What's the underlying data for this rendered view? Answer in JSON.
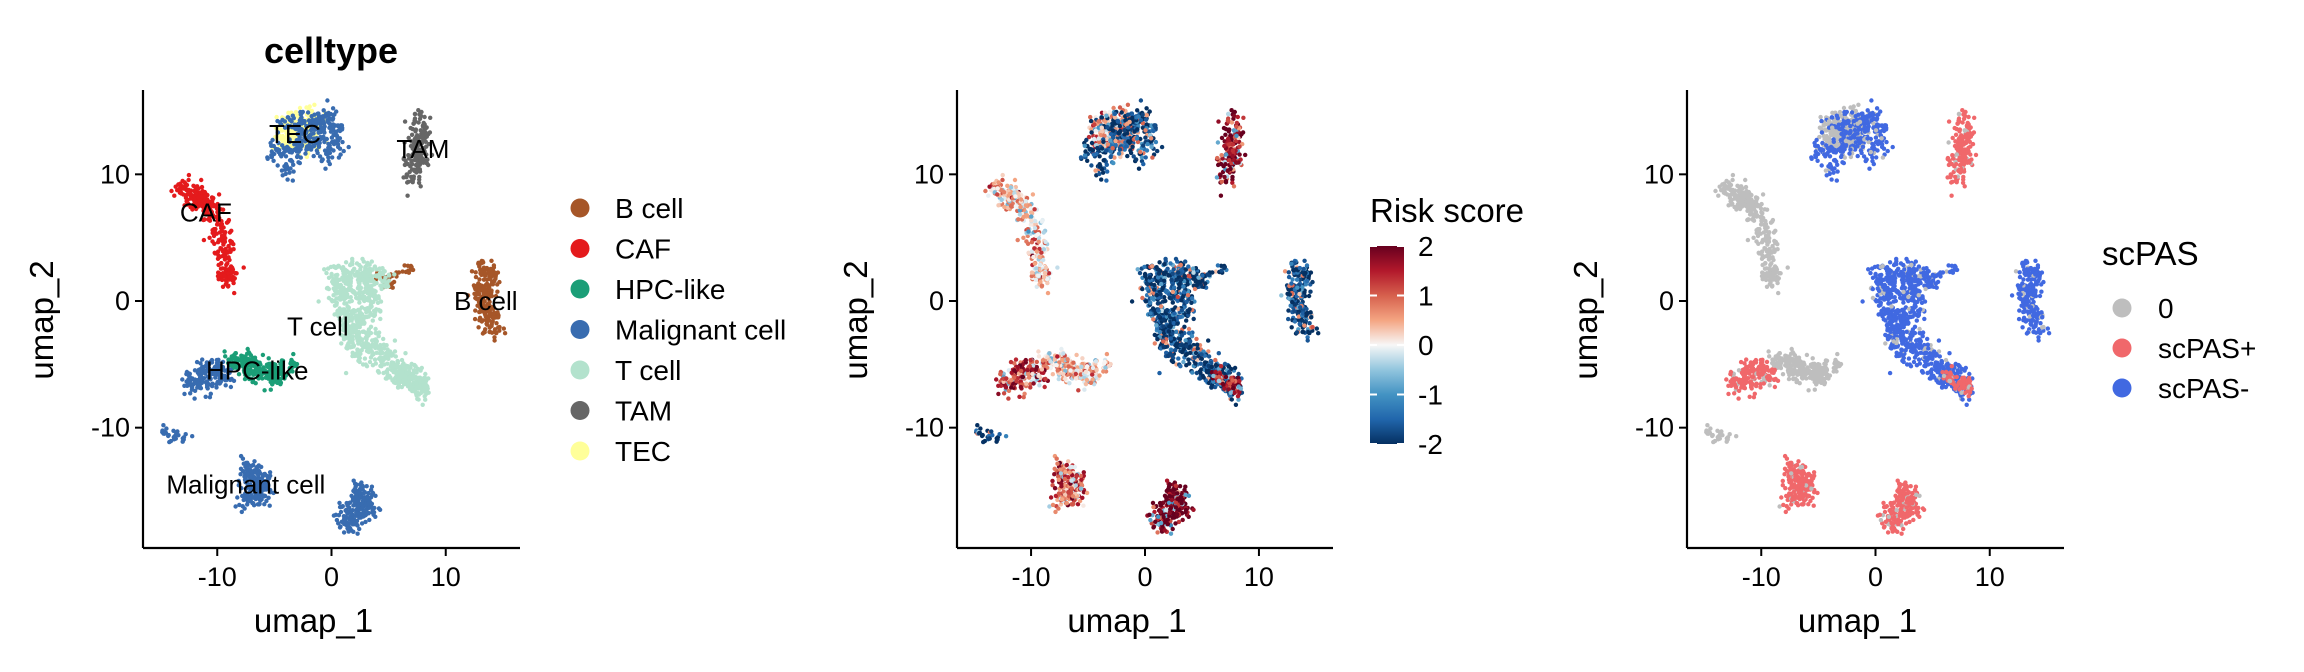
{
  "chart_data": [
    {
      "type": "scatter",
      "title": "celltype",
      "xlabel": "umap_1",
      "ylabel": "umap_2",
      "xlim": [
        -16.5,
        16.5
      ],
      "ylim": [
        -19.5,
        16.5
      ],
      "xticks": [
        -10,
        0,
        10
      ],
      "yticks": [
        -10,
        0,
        10
      ],
      "xtick_labels": [
        "-10",
        "0",
        "10"
      ],
      "ytick_labels": [
        "-10",
        "0",
        "10"
      ],
      "grid": false,
      "legend": {
        "position": "right",
        "title": "",
        "items": [
          {
            "label": "B cell",
            "color": "#A65628"
          },
          {
            "label": "CAF",
            "color": "#E41A1C"
          },
          {
            "label": "HPC-like",
            "color": "#1B9E77"
          },
          {
            "label": "Malignant cell",
            "color": "#386CB0"
          },
          {
            "label": "T cell",
            "color": "#B3E2CD"
          },
          {
            "label": "TAM",
            "color": "#666666"
          },
          {
            "label": "TEC",
            "color": "#FFFF99"
          }
        ]
      },
      "cluster_labels": [
        {
          "text": "TEC",
          "x": -3.2,
          "y": 13.2
        },
        {
          "text": "TAM",
          "x": 8.0,
          "y": 12.0
        },
        {
          "text": "CAF",
          "x": -11.0,
          "y": 7.0
        },
        {
          "text": "B cell",
          "x": 13.5,
          "y": 0.0
        },
        {
          "text": "T cell",
          "x": -1.2,
          "y": -2.0
        },
        {
          "text": "HPC-like",
          "x": -6.5,
          "y": -5.5
        },
        {
          "text": "Malignant cell",
          "x": -7.5,
          "y": -14.5
        }
      ]
    },
    {
      "type": "scatter",
      "title": "",
      "xlabel": "umap_1",
      "ylabel": "umap_2",
      "xlim": [
        -16.5,
        16.5
      ],
      "ylim": [
        -19.5,
        16.5
      ],
      "xticks": [
        -10,
        0,
        10
      ],
      "yticks": [
        -10,
        0,
        10
      ],
      "xtick_labels": [
        "-10",
        "0",
        "10"
      ],
      "ytick_labels": [
        "-10",
        "0",
        "10"
      ],
      "grid": false,
      "colorbar": {
        "title": "Risk score",
        "min": -2,
        "max": 2,
        "ticks": [
          -2,
          -1,
          0,
          1,
          2
        ],
        "tick_labels": [
          "-2",
          "-1",
          "0",
          "1",
          "2"
        ],
        "colors": [
          "#053061",
          "#2166AC",
          "#4393C3",
          "#92C5DE",
          "#F7F7F7",
          "#F4A582",
          "#D6604D",
          "#B2182B",
          "#67001F"
        ]
      }
    },
    {
      "type": "scatter",
      "title": "",
      "xlabel": "umap_1",
      "ylabel": "umap_2",
      "xlim": [
        -16.5,
        16.5
      ],
      "ylim": [
        -19.5,
        16.5
      ],
      "xticks": [
        -10,
        0,
        10
      ],
      "yticks": [
        -10,
        0,
        10
      ],
      "xtick_labels": [
        "-10",
        "0",
        "10"
      ],
      "ytick_labels": [
        "-10",
        "0",
        "10"
      ],
      "grid": false,
      "legend": {
        "position": "right",
        "title": "scPAS",
        "items": [
          {
            "label": "0",
            "color": "#BEBEBE"
          },
          {
            "label": "scPAS+",
            "color": "#F0686B"
          },
          {
            "label": "scPAS-",
            "color": "#4169E1"
          }
        ]
      }
    }
  ],
  "clusters": [
    {
      "celltype": "TEC",
      "risk": 0.6,
      "pas": "0",
      "n": 230,
      "pts": [
        [
          -4,
          13.8
        ],
        [
          -3,
          14.2
        ],
        [
          -2,
          14.4
        ],
        [
          -1.5,
          13.8
        ],
        [
          -2,
          12.8
        ],
        [
          -3,
          12.2
        ],
        [
          -4,
          12.8
        ],
        [
          -3,
          13.2
        ]
      ],
      "spread": 0.55
    },
    {
      "celltype": "TAM",
      "risk": 1.6,
      "pas": "scPAS+",
      "n": 170,
      "pts": [
        [
          7.5,
          14
        ],
        [
          7.4,
          12.5
        ],
        [
          7.3,
          11
        ],
        [
          7.2,
          10
        ],
        [
          8,
          13
        ],
        [
          7.8,
          11.5
        ]
      ],
      "spread": 0.45
    },
    {
      "celltype": "CAF",
      "risk": 0.4,
      "pas": "0",
      "n": 320,
      "pts": [
        [
          -12.8,
          8.8
        ],
        [
          -11.8,
          8.3
        ],
        [
          -10.7,
          7.5
        ],
        [
          -10.2,
          6.6
        ],
        [
          -9.7,
          5.2
        ],
        [
          -9.5,
          4
        ],
        [
          -9.2,
          2.5
        ],
        [
          -9.0,
          1.8
        ],
        [
          -11.3,
          7.8
        ]
      ],
      "spread": 0.45
    },
    {
      "celltype": "B cell",
      "risk": -1.8,
      "pas": "scPAS-",
      "n": 230,
      "pts": [
        [
          13.2,
          2.5
        ],
        [
          13.9,
          2
        ],
        [
          13.7,
          0.5
        ],
        [
          13.9,
          -1.2
        ],
        [
          14.2,
          -2.3
        ],
        [
          13.2,
          1
        ],
        [
          13.5,
          -0.5
        ]
      ],
      "spread": 0.45
    },
    {
      "celltype": "B cell",
      "risk": -1.7,
      "pas": "scPAS-",
      "n": 45,
      "pts": [
        [
          4.5,
          1.8
        ],
        [
          5.5,
          2.2
        ],
        [
          6.5,
          2.4
        ],
        [
          5,
          1.3
        ]
      ],
      "spread": 0.3
    },
    {
      "celltype": "T cell",
      "risk": -1.8,
      "pas": "scPAS-",
      "n": 750,
      "pts": [
        [
          0.6,
          2
        ],
        [
          1.8,
          2.2
        ],
        [
          3,
          2.3
        ],
        [
          4,
          1.8
        ],
        [
          1,
          0.5
        ],
        [
          2,
          0.8
        ],
        [
          3.2,
          0.8
        ],
        [
          1.1,
          -1
        ],
        [
          2,
          -1.5
        ],
        [
          3.3,
          -0.5
        ],
        [
          1.5,
          -2.5
        ],
        [
          2.8,
          -2.8
        ],
        [
          2.4,
          -4
        ],
        [
          3.5,
          -3.5
        ],
        [
          4.5,
          -4.6
        ],
        [
          5.5,
          -5.3
        ],
        [
          6.8,
          -6
        ],
        [
          7.8,
          -6.8
        ],
        [
          6,
          -5.7
        ],
        [
          0.8,
          1.2
        ]
      ],
      "spread": 0.55
    },
    {
      "celltype": "T cell",
      "risk": 1.5,
      "pas": "scPAS+",
      "n": 70,
      "pts": [
        [
          6.6,
          -6
        ],
        [
          7.5,
          -6.5
        ],
        [
          8,
          -6.8
        ]
      ],
      "spread": 0.35
    },
    {
      "celltype": "HPC-like",
      "risk": 0.3,
      "pas": "0",
      "n": 280,
      "pts": [
        [
          -8.5,
          -4.7
        ],
        [
          -7.5,
          -4.8
        ],
        [
          -6.5,
          -5.2
        ],
        [
          -5.5,
          -5.5
        ],
        [
          -4.7,
          -5.4
        ],
        [
          -3.6,
          -5.1
        ],
        [
          -7,
          -5.6
        ],
        [
          -5,
          -6
        ]
      ],
      "spread": 0.45
    },
    {
      "celltype": "Malignant cell",
      "risk": 1.2,
      "pas": "scPAS+",
      "n": 170,
      "pts": [
        [
          -12.5,
          -6.2
        ],
        [
          -11.2,
          -5.8
        ],
        [
          -10.2,
          -5.2
        ],
        [
          -9.5,
          -5.5
        ],
        [
          -11.8,
          -6.6
        ],
        [
          -10.5,
          -6.4
        ],
        [
          -9.2,
          -6.2
        ]
      ],
      "spread": 0.4
    },
    {
      "celltype": "Malignant cell",
      "risk": -1.8,
      "pas": "0",
      "n": 30,
      "pts": [
        [
          -14.6,
          -10.4
        ],
        [
          -13.8,
          -10.7
        ],
        [
          -13,
          -10.8
        ],
        [
          -12.5,
          -10.5
        ]
      ],
      "spread": 0.25
    },
    {
      "celltype": "Malignant cell",
      "risk": 1.0,
      "pas": "scPAS+",
      "n": 190,
      "pts": [
        [
          -7.5,
          -13.2
        ],
        [
          -6.5,
          -13.8
        ],
        [
          -7,
          -14.5
        ],
        [
          -6.2,
          -15.3
        ],
        [
          -7.5,
          -15.6
        ],
        [
          -6,
          -14.5
        ]
      ],
      "spread": 0.45
    },
    {
      "celltype": "Malignant cell",
      "risk": 1.9,
      "pas": "scPAS+",
      "n": 200,
      "pts": [
        [
          2.3,
          -14.8
        ],
        [
          2.8,
          -15.4
        ],
        [
          1.8,
          -16.2
        ],
        [
          2.8,
          -16.8
        ],
        [
          1.2,
          -17.2
        ],
        [
          2,
          -17.6
        ],
        [
          3.2,
          -16
        ]
      ],
      "spread": 0.45
    },
    {
      "celltype": "Malignant cell",
      "risk": -1.8,
      "pas": "scPAS-",
      "n": 180,
      "pts": [
        [
          -3.8,
          14.2
        ],
        [
          -2.6,
          14.3
        ],
        [
          -1.5,
          13.4
        ],
        [
          -2.5,
          12.4
        ],
        [
          -3.6,
          11.8
        ],
        [
          -5,
          11.8
        ],
        [
          -3.8,
          10.5
        ],
        [
          -2.7,
          13.2
        ]
      ],
      "spread": 0.45
    },
    {
      "celltype": "Malignant cell",
      "risk": -1.8,
      "pas": "scPAS-",
      "n": 150,
      "pts": [
        [
          -1.2,
          14.3
        ],
        [
          -0.3,
          14.5
        ],
        [
          0.4,
          13.6
        ],
        [
          0.3,
          12.2
        ],
        [
          -0.5,
          11.5
        ],
        [
          -1.2,
          12.5
        ],
        [
          -0.5,
          13.2
        ]
      ],
      "spread": 0.4
    }
  ]
}
